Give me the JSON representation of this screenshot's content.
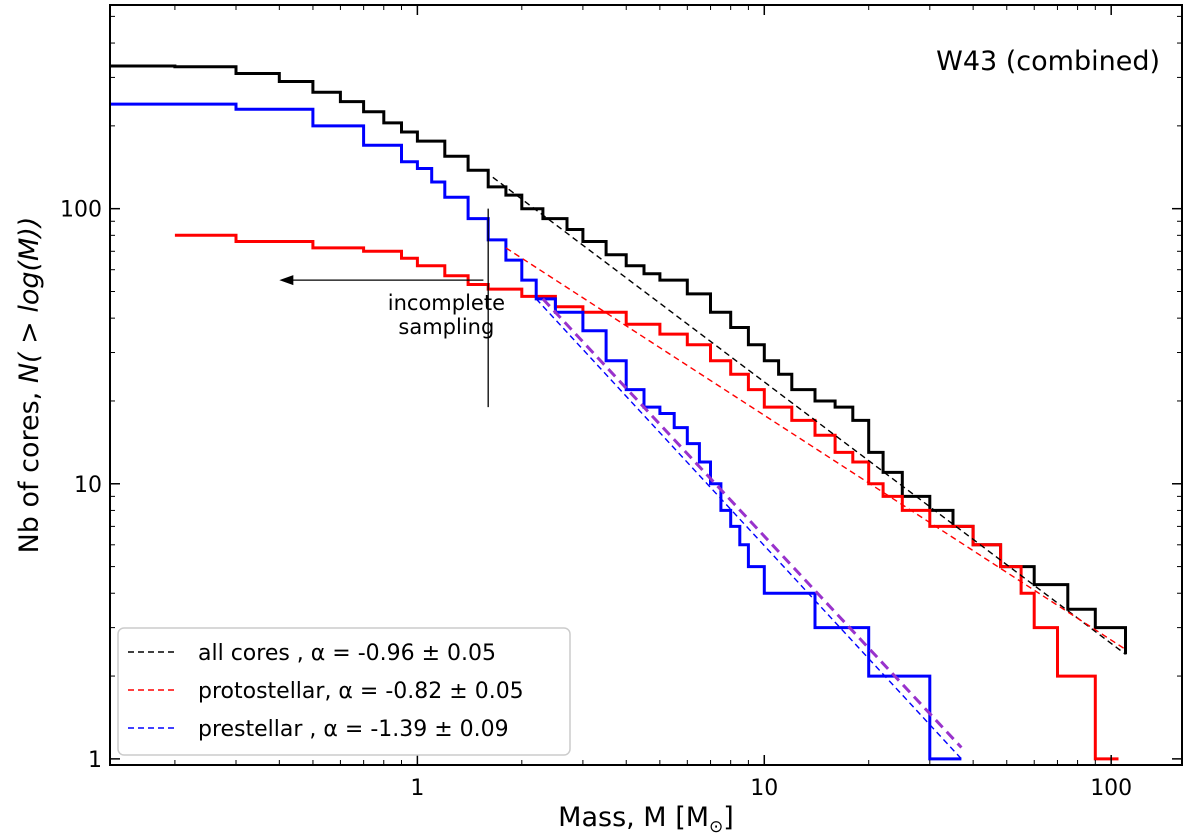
{
  "chart_data": {
    "type": "line",
    "title": "W43 (combined)",
    "xlabel": "Mass, M [M",
    "xlabel_sub": "⊙",
    "xlabel_end": "]",
    "ylabel_prefix": "Nb of cores, ",
    "ylabel_math": "N( > log(M))",
    "xscale": "log",
    "yscale": "log",
    "xlim": [
      0.13,
      160
    ],
    "ylim": [
      0.95,
      550
    ],
    "x_ticks": [
      1,
      10,
      100
    ],
    "x_tick_labels": [
      "1",
      "10",
      "100"
    ],
    "y_ticks": [
      1,
      10,
      100
    ],
    "y_tick_labels": [
      "1",
      "10",
      "100"
    ],
    "legend_position": "bottom-left",
    "series": [
      {
        "name": "all cores",
        "color": "#000000",
        "style": "step",
        "points": [
          [
            0.13,
            330
          ],
          [
            0.2,
            328
          ],
          [
            0.3,
            310
          ],
          [
            0.4,
            290
          ],
          [
            0.5,
            265
          ],
          [
            0.6,
            245
          ],
          [
            0.7,
            225
          ],
          [
            0.8,
            205
          ],
          [
            0.9,
            190
          ],
          [
            1.0,
            176
          ],
          [
            1.2,
            155
          ],
          [
            1.4,
            138
          ],
          [
            1.6,
            120
          ],
          [
            1.8,
            112
          ],
          [
            2.0,
            100
          ],
          [
            2.3,
            92
          ],
          [
            2.7,
            84
          ],
          [
            3.0,
            76
          ],
          [
            3.5,
            68
          ],
          [
            4.0,
            62
          ],
          [
            4.5,
            58
          ],
          [
            5.0,
            55
          ],
          [
            6.0,
            49
          ],
          [
            7.0,
            42
          ],
          [
            8.0,
            37
          ],
          [
            9.0,
            32
          ],
          [
            10.0,
            28
          ],
          [
            11.0,
            25
          ],
          [
            12.0,
            22
          ],
          [
            14.0,
            20
          ],
          [
            16.0,
            19
          ],
          [
            18.0,
            17
          ],
          [
            20.0,
            13
          ],
          [
            22.0,
            11
          ],
          [
            25.0,
            9
          ],
          [
            30.0,
            8
          ],
          [
            35.0,
            7
          ],
          [
            40.0,
            6
          ],
          [
            48.0,
            5
          ],
          [
            60.0,
            4.3
          ],
          [
            75.0,
            3.5
          ],
          [
            90.0,
            3.0
          ],
          [
            110.0,
            2.4
          ]
        ]
      },
      {
        "name": "protostellar",
        "color": "#ff0000",
        "style": "step",
        "points": [
          [
            0.2,
            80
          ],
          [
            0.3,
            76
          ],
          [
            0.5,
            72
          ],
          [
            0.7,
            70
          ],
          [
            0.9,
            66
          ],
          [
            1.0,
            62
          ],
          [
            1.2,
            57
          ],
          [
            1.4,
            53
          ],
          [
            1.6,
            51
          ],
          [
            2.0,
            48
          ],
          [
            2.5,
            44
          ],
          [
            3.0,
            42
          ],
          [
            4.0,
            38
          ],
          [
            5.0,
            35
          ],
          [
            6.0,
            32
          ],
          [
            7.0,
            28
          ],
          [
            8.0,
            25
          ],
          [
            9.0,
            22
          ],
          [
            10.0,
            19
          ],
          [
            12.0,
            17
          ],
          [
            14.0,
            15
          ],
          [
            16.0,
            13
          ],
          [
            18.0,
            12
          ],
          [
            20.0,
            10
          ],
          [
            22.0,
            9
          ],
          [
            25.0,
            8
          ],
          [
            30.0,
            7
          ],
          [
            40.0,
            6
          ],
          [
            48.0,
            5
          ],
          [
            55.0,
            4
          ],
          [
            60.0,
            3
          ],
          [
            70.0,
            2
          ],
          [
            90.0,
            1
          ],
          [
            105.0,
            1
          ]
        ]
      },
      {
        "name": "prestellar",
        "color": "#0000ff",
        "style": "step",
        "points": [
          [
            0.13,
            240
          ],
          [
            0.3,
            230
          ],
          [
            0.5,
            200
          ],
          [
            0.7,
            170
          ],
          [
            0.9,
            148
          ],
          [
            1.0,
            140
          ],
          [
            1.1,
            125
          ],
          [
            1.2,
            110
          ],
          [
            1.4,
            92
          ],
          [
            1.6,
            77
          ],
          [
            1.8,
            65
          ],
          [
            2.0,
            55
          ],
          [
            2.2,
            47
          ],
          [
            2.5,
            42
          ],
          [
            3.0,
            36
          ],
          [
            3.5,
            28
          ],
          [
            4.0,
            22
          ],
          [
            4.5,
            19
          ],
          [
            5.0,
            18
          ],
          [
            5.5,
            16
          ],
          [
            6.0,
            14
          ],
          [
            6.5,
            12
          ],
          [
            7.0,
            10
          ],
          [
            7.5,
            8
          ],
          [
            8.0,
            7
          ],
          [
            8.5,
            6
          ],
          [
            9.0,
            5
          ],
          [
            10.0,
            4
          ],
          [
            14.0,
            3
          ],
          [
            20.0,
            2
          ],
          [
            30.0,
            1
          ],
          [
            37.0,
            1
          ]
        ]
      }
    ],
    "fits": [
      {
        "color": "#000000",
        "dash": "6,4",
        "width": 1.4,
        "x": [
          1.65,
          110
        ],
        "y": [
          130,
          2.4
        ]
      },
      {
        "color": "#ff0000",
        "dash": "6,4",
        "width": 1.4,
        "x": [
          1.8,
          110
        ],
        "y": [
          72,
          2.5
        ]
      },
      {
        "color": "#0000ff",
        "dash": "6,4",
        "width": 1.4,
        "x": [
          2.2,
          37
        ],
        "y": [
          47,
          1.0
        ]
      },
      {
        "color": "#9932cc",
        "dash": "10,6",
        "width": 3,
        "x": [
          2.3,
          37
        ],
        "y": [
          47,
          1.1
        ]
      }
    ],
    "legend": [
      {
        "color": "#000000",
        "text": "  all cores  , α = -0.96 ± 0.05"
      },
      {
        "color": "#ff0000",
        "text": "protostellar, α = -0.82 ± 0.05"
      },
      {
        "color": "#0000ff",
        "text": "  prestellar , α = -1.39 ± 0.09"
      }
    ],
    "annotation": {
      "lines": [
        "incomplete",
        "sampling"
      ],
      "marker_x": 1.6,
      "marker_y": [
        19,
        100
      ],
      "arrow_from_x": 1.55,
      "arrow_to_x": 0.4,
      "arrow_y": 55
    }
  }
}
